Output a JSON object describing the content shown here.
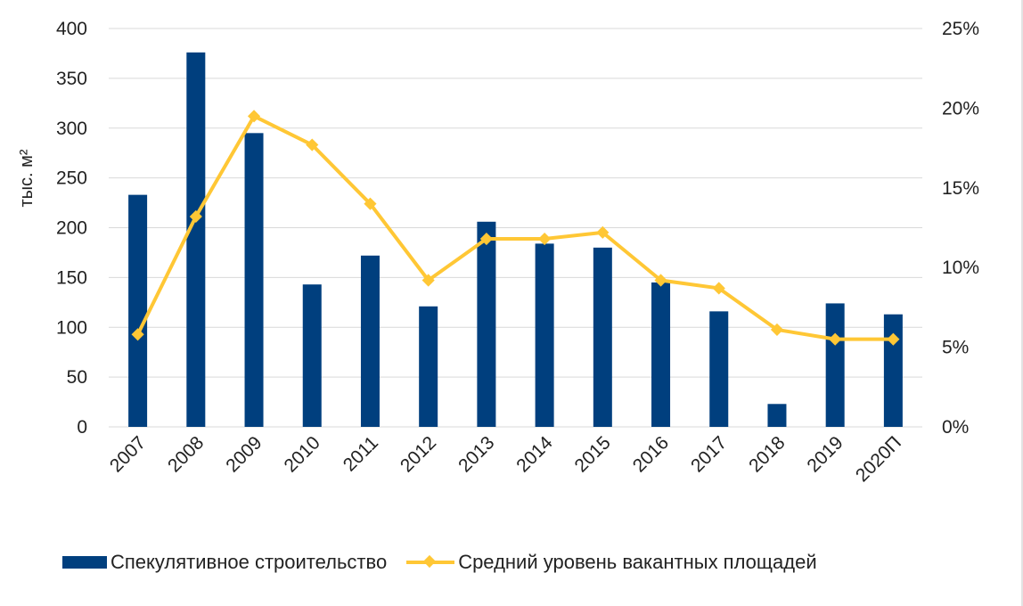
{
  "chart_data": {
    "type": "bar",
    "categories": [
      "2007",
      "2008",
      "2009",
      "2010",
      "2011",
      "2012",
      "2013",
      "2014",
      "2015",
      "2016",
      "2017",
      "2018",
      "2019",
      "2020П"
    ],
    "series": [
      {
        "name": "Спекулятивное строительство",
        "type": "bar",
        "axis": "left",
        "values": [
          233,
          376,
          295,
          143,
          172,
          121,
          206,
          184,
          180,
          145,
          116,
          23,
          124,
          113
        ]
      },
      {
        "name": "Средний уровень вакантных площадей",
        "type": "line",
        "axis": "right",
        "values": [
          5.8,
          13.2,
          19.5,
          17.7,
          14.0,
          9.2,
          11.8,
          11.8,
          12.2,
          9.2,
          8.7,
          6.1,
          5.5,
          5.5
        ]
      }
    ],
    "ylabel": "тыс. м²",
    "ylim": [
      0,
      400
    ],
    "yticks": [
      "0",
      "50",
      "100",
      "150",
      "200",
      "250",
      "300",
      "350",
      "400"
    ],
    "y2lim": [
      0,
      25
    ],
    "y2ticks": [
      "0%",
      "5%",
      "10%",
      "15%",
      "20%",
      "25%"
    ],
    "grid": true,
    "legend_position": "bottom",
    "colors": {
      "bar": "#003f7e",
      "line": "#ffc735",
      "grid": "#d9d9d9"
    }
  }
}
